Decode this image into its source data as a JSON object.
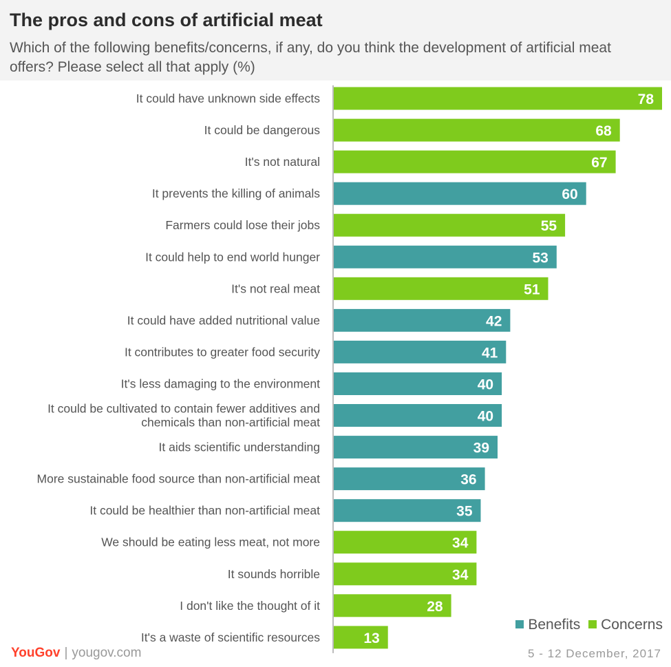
{
  "header": {
    "title": "The pros and cons of artificial meat",
    "subtitle": "Which of the following benefits/concerns, if any, do you think the development of artificial meat offers? Please select all that apply (%)"
  },
  "colors": {
    "benefits": "#429fa0",
    "concerns": "#7fcb1d",
    "axis": "#bbbbbb",
    "label": "#555555"
  },
  "legend": {
    "benefits": "Benefits",
    "concerns": "Concerns"
  },
  "footer": {
    "brand": "YouGov",
    "separator": "|",
    "site": "yougov.com",
    "date": "5 - 12 December, 2017"
  },
  "chart_data": {
    "type": "bar",
    "orientation": "horizontal",
    "title": "The pros and cons of artificial meat",
    "xlim": [
      0,
      78
    ],
    "grid": false,
    "legend_position": "bottom-right",
    "categories": [
      "It could have unknown side effects",
      "It could be dangerous",
      "It's not natural",
      "It prevents the killing of animals",
      "Farmers could lose their jobs",
      "It could help to end world hunger",
      "It's not real meat",
      "It could have added nutritional value",
      "It contributes to greater food security",
      "It's less damaging to the environment",
      [
        "It could be cultivated to contain fewer additives and",
        "chemicals than non-artificial meat"
      ],
      "It aids scientific understanding",
      "More sustainable food source than non-artificial meat",
      "It could be healthier than non-artificial meat",
      "We should be eating less meat, not more",
      "It sounds horrible",
      "I don't like the thought of it",
      "It's a waste of scientific resources"
    ],
    "values": [
      78,
      68,
      67,
      60,
      55,
      53,
      51,
      42,
      41,
      40,
      40,
      39,
      36,
      35,
      34,
      34,
      28,
      13
    ],
    "groups": [
      "concerns",
      "concerns",
      "concerns",
      "benefits",
      "concerns",
      "benefits",
      "concerns",
      "benefits",
      "benefits",
      "benefits",
      "benefits",
      "benefits",
      "benefits",
      "benefits",
      "concerns",
      "concerns",
      "concerns",
      "concerns"
    ],
    "series": [
      {
        "name": "Benefits",
        "key": "benefits"
      },
      {
        "name": "Concerns",
        "key": "concerns"
      }
    ]
  }
}
